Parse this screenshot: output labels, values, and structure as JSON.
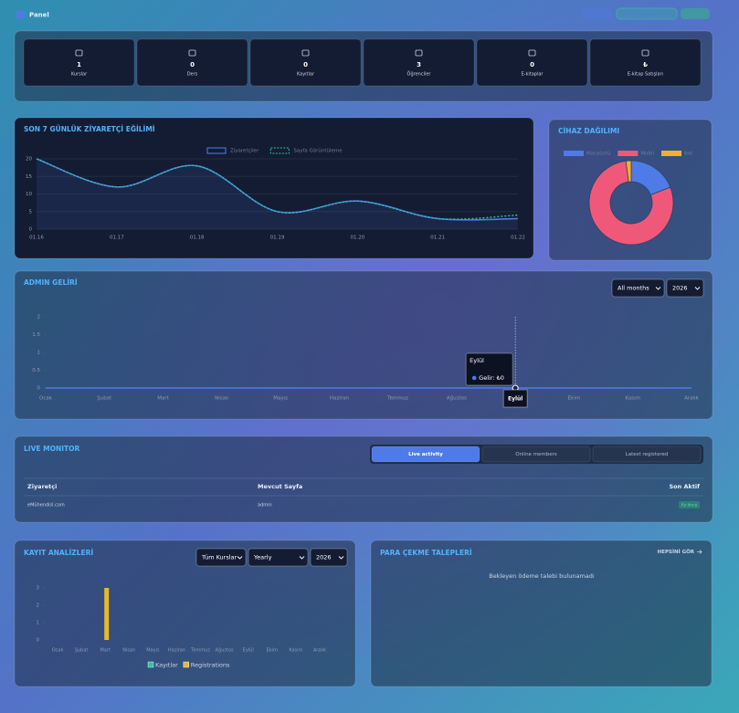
{
  "header": {
    "title": "Panel"
  },
  "stats": [
    {
      "value": "1",
      "label": "Kurslar"
    },
    {
      "value": "0",
      "label": "Ders"
    },
    {
      "value": "0",
      "label": "Kayıtlar"
    },
    {
      "value": "3",
      "label": "Öğrenciler"
    },
    {
      "value": "0",
      "label": "E-kitaplar"
    },
    {
      "value": "₺",
      "label": "E-kitap Satışları"
    }
  ],
  "chart_data": [
    {
      "type": "line",
      "title": "SON 7 GÜNLÜK ZİYARETÇİ EĞİLİMİ",
      "categories": [
        "01.16",
        "01.17",
        "01.18",
        "01.19",
        "01.20",
        "01.21",
        "01.22"
      ],
      "series": [
        {
          "name": "Ziyaretçiler",
          "color": "#4f7be8",
          "values": [
            20,
            12,
            18,
            5,
            8,
            3,
            3
          ]
        },
        {
          "name": "Sayfa Görüntüleme",
          "color": "#2ec4a0",
          "values": [
            20,
            12,
            18,
            5,
            8,
            3,
            4
          ]
        }
      ],
      "ylim": [
        0,
        20
      ],
      "yticks": [
        0,
        5,
        10,
        15,
        20
      ],
      "grid": true
    },
    {
      "type": "doughnut",
      "title": "CİHAZ DAĞILIMI",
      "categories": [
        "Masaüstü",
        "Mobil",
        "Bot"
      ],
      "values": [
        19,
        79,
        2
      ],
      "colors": [
        "#4f7be8",
        "#f0587a",
        "#f2b02a"
      ]
    },
    {
      "type": "line",
      "title": "ADMIN GELİRİ",
      "filters": [
        "All months",
        "2026"
      ],
      "categories": [
        "Ocak",
        "Şubat",
        "Mart",
        "Nisan",
        "Mayıs",
        "Haziran",
        "Temmuz",
        "Ağustos",
        "Eylül",
        "Ekim",
        "Kasım",
        "Aralık"
      ],
      "values": [
        0,
        0,
        0,
        0,
        0,
        0,
        0,
        0,
        0,
        0,
        0,
        0
      ],
      "color": "#4f7be8",
      "ylim": [
        0,
        2
      ],
      "yticks": [
        0,
        0.5,
        1,
        1.5,
        2
      ],
      "tooltip": {
        "title": "Eylül",
        "label": "Gelir: ₺0"
      }
    },
    {
      "type": "bar",
      "title": "KAYIT ANALİZLERİ",
      "filters": [
        "Tüm Kurslar",
        "Yearly",
        "2026"
      ],
      "categories": [
        "Ocak",
        "Şubat",
        "Mart",
        "Nisan",
        "Mayıs",
        "Haziran",
        "Temmuz",
        "Ağustos",
        "Eylül",
        "Ekim",
        "Kasım",
        "Aralık"
      ],
      "series": [
        {
          "name": "Kayıtlar",
          "color": "#2ec4a0",
          "values": [
            0,
            0,
            0,
            0,
            0,
            0,
            0,
            0,
            0,
            0,
            0,
            0
          ]
        },
        {
          "name": "Registrations",
          "color": "#e8b92c",
          "values": [
            0,
            0,
            3,
            0,
            0,
            0,
            0,
            0,
            0,
            0,
            0,
            0
          ]
        }
      ],
      "ylim": [
        0,
        3
      ],
      "yticks": [
        0,
        1,
        2,
        3
      ]
    }
  ],
  "live_monitor": {
    "title": "LIVE MONITOR",
    "tabs": [
      "Live activity",
      "Online members",
      "Latest registered"
    ],
    "columns": [
      "Ziyaretçi",
      "Mevcut Sayfa",
      "Son Aktif"
    ],
    "rows": [
      [
        "eMühendisl.com",
        "admin",
        "Az önce"
      ]
    ]
  },
  "withdrawals": {
    "title": "PARA ÇEKME TALEPLERİ",
    "link": "HEPSİNİ GÖR",
    "empty": "Bekleyen ödeme talebi bulunamadı"
  }
}
